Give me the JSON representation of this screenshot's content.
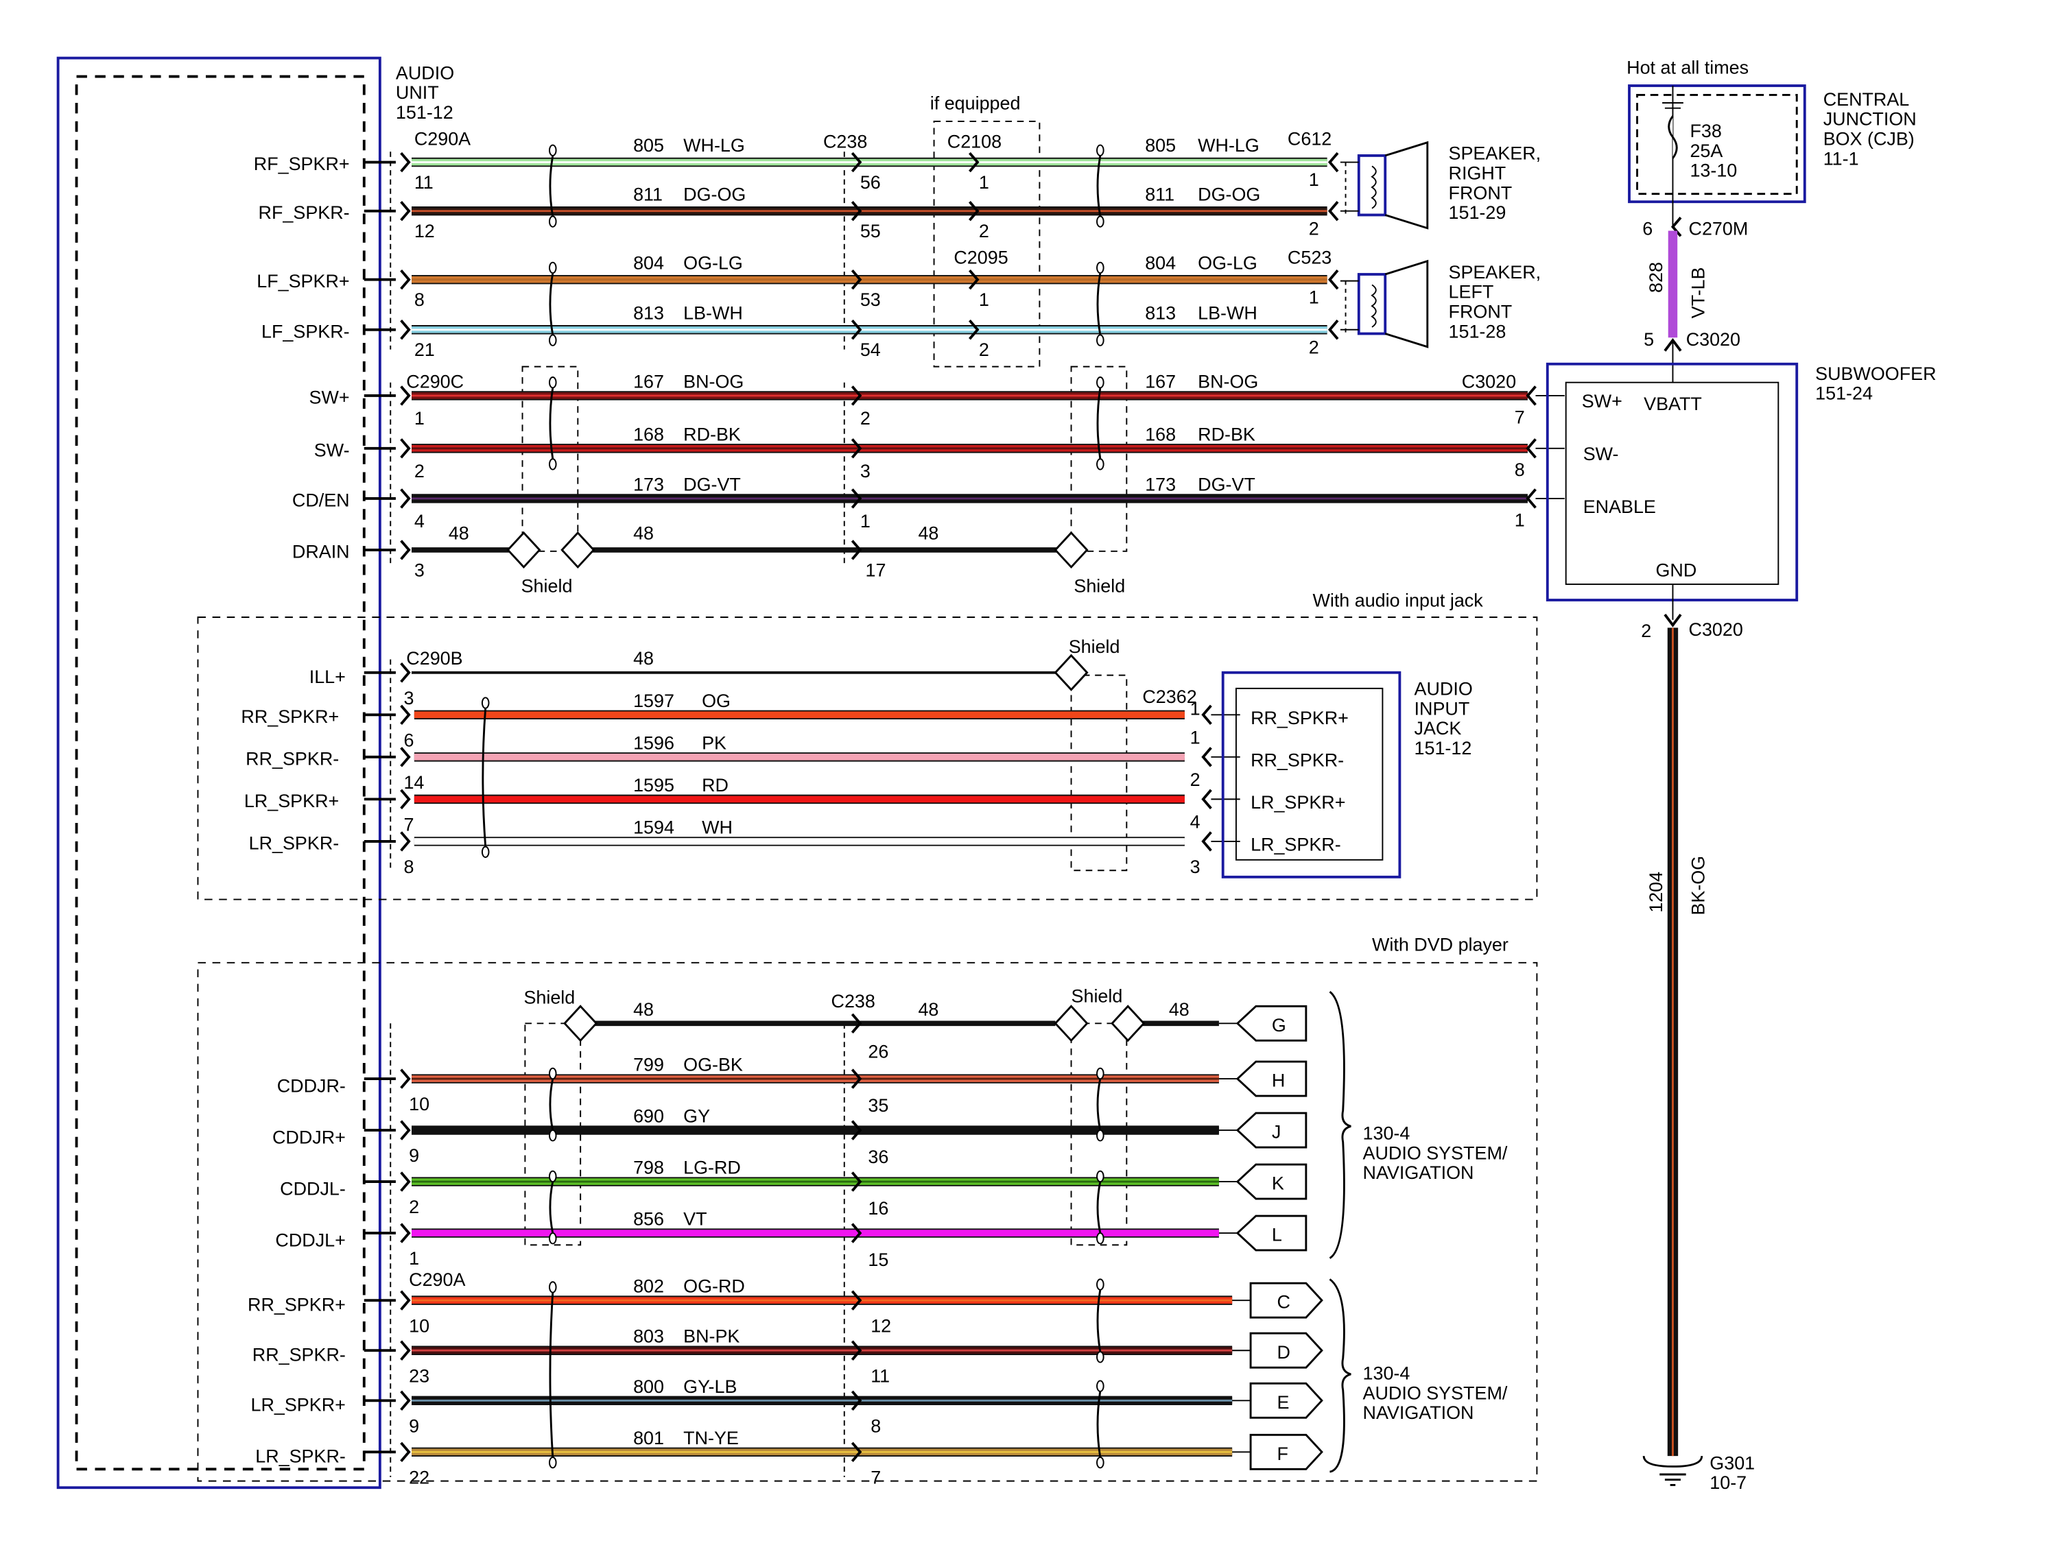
{
  "audio_unit": {
    "lines": [
      "AUDIO",
      "UNIT",
      "151-12"
    ]
  },
  "front_section": {
    "left_connector": "C290A",
    "mid_connector": "C238",
    "optional_label": "if equipped",
    "opt_connectors": [
      "C2108",
      "C2095"
    ],
    "right_connectors": [
      "C612",
      "C523"
    ],
    "wires": [
      {
        "pin_label": "RF_SPKR+",
        "left_pin": "11",
        "circuit": "805",
        "color_code": "WH-LG",
        "mid_pin": "56",
        "opt_pin": "1",
        "right_pin": "1",
        "colors": [
          "#9fe39a",
          "#ffffff"
        ]
      },
      {
        "pin_label": "RF_SPKR-",
        "left_pin": "12",
        "circuit": "811",
        "color_code": "DG-OG",
        "mid_pin": "55",
        "opt_pin": "2",
        "right_pin": "2",
        "colors": [
          "#2b1710",
          "#c8502a"
        ]
      },
      {
        "pin_label": "LF_SPKR+",
        "left_pin": "8",
        "circuit": "804",
        "color_code": "OG-LG",
        "mid_pin": "53",
        "opt_pin": "1",
        "right_pin": "1",
        "colors": [
          "#d0782e",
          "#b86a28"
        ]
      },
      {
        "pin_label": "LF_SPKR-",
        "left_pin": "21",
        "circuit": "813",
        "color_code": "LB-WH",
        "mid_pin": "54",
        "opt_pin": "2",
        "right_pin": "2",
        "colors": [
          "#86cfe0",
          "#ffffff"
        ]
      }
    ],
    "speakers": [
      {
        "lines": [
          "SPEAKER,",
          "RIGHT",
          "FRONT",
          "151-29"
        ]
      },
      {
        "lines": [
          "SPEAKER,",
          "LEFT",
          "FRONT",
          "151-28"
        ]
      }
    ]
  },
  "sub_section": {
    "left_connector": "C290C",
    "right_connector": "C3020",
    "wires": [
      {
        "pin_label": "SW+",
        "left_pin": "1",
        "circuit": "167",
        "color_code": "BN-OG",
        "mid_pin": "2",
        "right_pin": "7",
        "colors": [
          "#7a1212",
          "#e03030"
        ]
      },
      {
        "pin_label": "SW-",
        "left_pin": "2",
        "circuit": "168",
        "color_code": "RD-BK",
        "mid_pin": "3",
        "right_pin": "8",
        "colors": [
          "#c81a1a",
          "#601010"
        ]
      },
      {
        "pin_label": "CD/EN",
        "left_pin": "4",
        "circuit": "173",
        "color_code": "DG-VT",
        "mid_pin": "1",
        "right_pin": "1",
        "colors": [
          "#111111",
          "#5a2a6a"
        ]
      }
    ],
    "drain": {
      "pin_label": "DRAIN",
      "left_pin": "3",
      "circuit": "48",
      "mid_pin": "17",
      "shield_label": "Shield"
    }
  },
  "jack_section": {
    "group_label": "With audio input jack",
    "left_connector": "C290B",
    "right_connector": "C2362",
    "shield_label": "Shield",
    "ill": {
      "pin_label": "ILL+",
      "left_pin": "3",
      "circuit": "48"
    },
    "wires": [
      {
        "pin_label": "RR_SPKR+",
        "left_pin": "6",
        "circuit": "1597",
        "color_code": "OG",
        "right_pin": "1",
        "jack_label": "RR_SPKR+",
        "colors": [
          "#f0461a",
          "#f0461a"
        ]
      },
      {
        "pin_label": "RR_SPKR-",
        "left_pin": "14",
        "circuit": "1596",
        "color_code": "PK",
        "right_pin": "1",
        "jack_label": "RR_SPKR-",
        "colors": [
          "#f4a3b4",
          "#f4a3b4"
        ]
      },
      {
        "pin_label": "LR_SPKR+",
        "left_pin": "7",
        "circuit": "1595",
        "color_code": "RD",
        "right_pin": "2",
        "jack_label": "LR_SPKR+",
        "colors": [
          "#f01616",
          "#f01616"
        ]
      },
      {
        "pin_label": "LR_SPKR-",
        "left_pin": "8",
        "circuit": "1594",
        "color_code": "WH",
        "right_pin": "4",
        "jack_label": "LR_SPKR-",
        "colors": [
          "#ffffff",
          "#ffffff"
        ]
      }
    ],
    "extra_right_pin": "3",
    "jack_title": [
      "AUDIO",
      "INPUT",
      "JACK",
      "151-12"
    ]
  },
  "dvd_section": {
    "group_label": "With DVD player",
    "mid_connector": "C238",
    "shield_label": "Shield",
    "drain": {
      "circuit": "48",
      "mid_pin": "26",
      "end": "G"
    },
    "wires": [
      {
        "pin_label": "CDDJR-",
        "left_pin": "10",
        "circuit": "799",
        "color_code": "OG-BK",
        "mid_pin": "35",
        "end": "H",
        "colors": [
          "#e06042",
          "#5a2010"
        ]
      },
      {
        "pin_label": "CDDJR+",
        "left_pin": "9",
        "circuit": "690",
        "color_code": "GY",
        "mid_pin": "36",
        "end": "J",
        "colors": [
          "#111111",
          "#111111"
        ]
      },
      {
        "pin_label": "CDDJL-",
        "left_pin": "2",
        "circuit": "798",
        "color_code": "LG-RD",
        "mid_pin": "16",
        "end": "K",
        "colors": [
          "#5cc026",
          "#2a6a10"
        ]
      },
      {
        "pin_label": "CDDJL+",
        "left_pin": "1",
        "circuit": "856",
        "color_code": "VT",
        "mid_pin": "15",
        "end": "L",
        "colors": [
          "#f016f0",
          "#f016f0"
        ]
      }
    ],
    "rear_connector": "C290A",
    "rear_wires": [
      {
        "pin_label": "RR_SPKR+",
        "left_pin": "10",
        "circuit": "802",
        "color_code": "OG-RD",
        "mid_pin": "12",
        "end": "C",
        "colors": [
          "#f2381a",
          "#f26a20"
        ]
      },
      {
        "pin_label": "RR_SPKR-",
        "left_pin": "23",
        "circuit": "803",
        "color_code": "BN-PK",
        "mid_pin": "11",
        "end": "D",
        "colors": [
          "#4a1010",
          "#d04040"
        ]
      },
      {
        "pin_label": "LR_SPKR+",
        "left_pin": "9",
        "circuit": "800",
        "color_code": "GY-LB",
        "mid_pin": "8",
        "end": "E",
        "colors": [
          "#111111",
          "#6a90a8"
        ]
      },
      {
        "pin_label": "LR_SPKR-",
        "left_pin": "22",
        "circuit": "801",
        "color_code": "TN-YE",
        "mid_pin": "7",
        "end": "F",
        "colors": [
          "#b8893a",
          "#e8c040"
        ]
      }
    ],
    "brace_labels": [
      [
        "130-4",
        "AUDIO SYSTEM/",
        "NAVIGATION"
      ],
      [
        "130-4",
        "AUDIO SYSTEM/",
        "NAVIGATION"
      ]
    ]
  },
  "power": {
    "hot_label": "Hot at all times",
    "fuse": [
      "F38",
      "25A",
      "13-10"
    ],
    "cjb": [
      "CENTRAL",
      "JUNCTION",
      "BOX (CJB)",
      "11-1"
    ],
    "top_connector": "C270M",
    "top_pin": "6",
    "feed_circuit": "828",
    "feed_color_code": "VT-LB",
    "feed_color": "#b04ad8",
    "sub_connector": "C3020",
    "sub_pin": "5",
    "subwoofer_title": [
      "SUBWOOFER",
      "151-24"
    ],
    "sub_pins": [
      "SW+",
      "VBATT",
      "SW-",
      "ENABLE",
      "GND"
    ],
    "ground_connector": "C3020",
    "ground_pin": "2",
    "ground_circuit": "1204",
    "ground_color_code": "BK-OG",
    "ground_label": [
      "G301",
      "10-7"
    ]
  },
  "colors": {
    "component_box": "#1a1aa0"
  }
}
